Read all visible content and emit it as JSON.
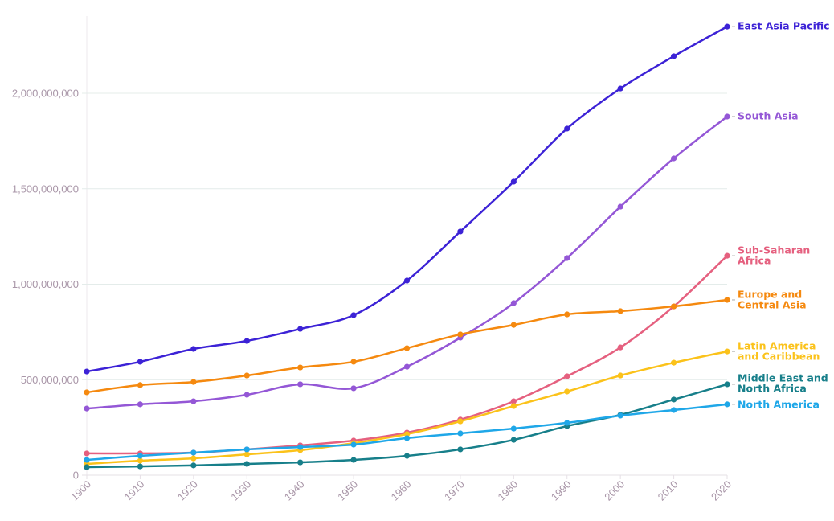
{
  "chart_data": {
    "type": "line",
    "title": "",
    "xlabel": "",
    "ylabel": "",
    "x": [
      1900,
      1910,
      1920,
      1930,
      1940,
      1950,
      1960,
      1970,
      1980,
      1990,
      2000,
      2010,
      2020
    ],
    "xlim": [
      1900,
      2020
    ],
    "ylim": [
      0,
      2400000000
    ],
    "y_ticks": [
      0,
      500000000,
      1000000000,
      1500000000,
      2000000000
    ],
    "y_tick_labels": [
      "0",
      "500,000,000",
      "1,000,000,000",
      "1,500,000,000",
      "2,000,000,000"
    ],
    "x_tick_labels": [
      "1900",
      "1910",
      "1920",
      "1930",
      "1940",
      "1950",
      "1960",
      "1970",
      "1980",
      "1990",
      "2000",
      "2010",
      "2020"
    ],
    "grid": "horizontal",
    "legend": "end-of-line labels (right)",
    "series": [
      {
        "name": "East Asia Pacific",
        "label_lines": [
          "East Asia Pacific"
        ],
        "color": "#3c22d6",
        "values": [
          543000000,
          594000000,
          661000000,
          703000000,
          766000000,
          838000000,
          1019000000,
          1276000000,
          1537000000,
          1815000000,
          2025000000,
          2194000000,
          2349000000
        ]
      },
      {
        "name": "South Asia",
        "label_lines": [
          "South Asia"
        ],
        "color": "#9457d6",
        "values": [
          349000000,
          371000000,
          387000000,
          421000000,
          476000000,
          455000000,
          568000000,
          720000000,
          901000000,
          1137000000,
          1406000000,
          1659000000,
          1878000000
        ]
      },
      {
        "name": "Sub-Saharan Africa",
        "label_lines": [
          "Sub-Saharan",
          "Africa"
        ],
        "color": "#e5607f",
        "values": [
          114000000,
          114000000,
          118000000,
          135000000,
          156000000,
          181000000,
          223000000,
          291000000,
          387000000,
          518000000,
          669000000,
          884000000,
          1149000000
        ]
      },
      {
        "name": "Europe and Central Asia",
        "label_lines": [
          "Europe and",
          "Central Asia"
        ],
        "color": "#f5890f",
        "values": [
          434000000,
          472000000,
          488000000,
          522000000,
          564000000,
          594000000,
          665000000,
          737000000,
          787000000,
          842000000,
          859000000,
          884000000,
          918000000
        ]
      },
      {
        "name": "Latin America and Caribbean",
        "label_lines": [
          "Latin America",
          "and Caribbean"
        ],
        "color": "#fbc21a",
        "values": [
          59000000,
          76000000,
          88000000,
          109000000,
          131000000,
          168000000,
          215000000,
          282000000,
          362000000,
          438000000,
          522000000,
          589000000,
          648000000
        ]
      },
      {
        "name": "Middle East and North Africa",
        "label_lines": [
          "Middle East and",
          "North Africa"
        ],
        "color": "#177f8a",
        "values": [
          42000000,
          46000000,
          51000000,
          59000000,
          67000000,
          80000000,
          101000000,
          135000000,
          185000000,
          257000000,
          316000000,
          396000000,
          476000000
        ]
      },
      {
        "name": "North America",
        "label_lines": [
          "North America"
        ],
        "color": "#1fa7e8",
        "values": [
          80000000,
          101000000,
          118000000,
          135000000,
          147000000,
          160000000,
          194000000,
          219000000,
          244000000,
          274000000,
          312000000,
          341000000,
          371000000
        ]
      }
    ]
  }
}
